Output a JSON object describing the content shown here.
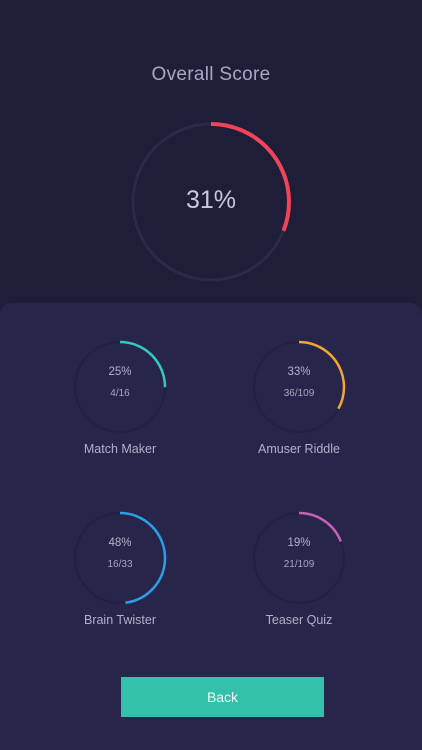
{
  "header": {
    "title": "Overall Score"
  },
  "overall": {
    "percent_label": "31%",
    "fraction": 0.31,
    "color": "#f24459",
    "track_color": "#2a2947"
  },
  "categories": [
    {
      "name": "Match Maker",
      "percent_label": "25%",
      "count_label": "4/16",
      "fraction": 0.25,
      "color": "#33c9c1"
    },
    {
      "name": "Amuser Riddle",
      "percent_label": "33%",
      "count_label": "36/109",
      "fraction": 0.33,
      "color": "#f3a634"
    },
    {
      "name": "Brain Twister",
      "percent_label": "48%",
      "count_label": "16/33",
      "fraction": 0.48,
      "color": "#2c9fe6"
    },
    {
      "name": "Teaser Quiz",
      "percent_label": "19%",
      "count_label": "21/109",
      "fraction": 0.19,
      "color": "#c95fb8"
    }
  ],
  "category_track_color": "#22213f",
  "actions": {
    "back_label": "Back",
    "back_color": "#34c1ab"
  }
}
